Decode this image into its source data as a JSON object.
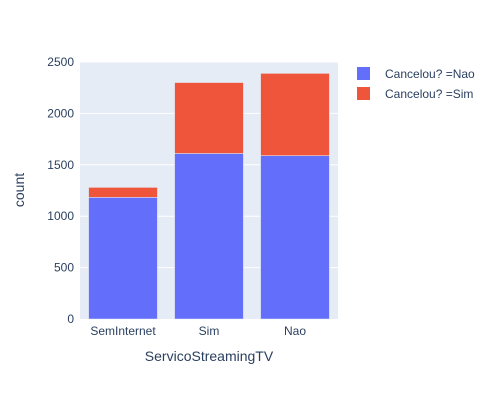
{
  "chart_data": {
    "type": "bar",
    "stacked": true,
    "categories": [
      "SemInternet",
      "Sim",
      "Nao"
    ],
    "series": [
      {
        "name": "Cancelou? =Nao",
        "values": [
          1183,
          1610,
          1589
        ],
        "color": "#636efa"
      },
      {
        "name": "Cancelou? =Sim",
        "values": [
          97,
          690,
          800
        ],
        "color": "#ef553b"
      }
    ],
    "title": "",
    "xlabel": "ServicoStreamingTV",
    "ylabel": "count",
    "ylim": [
      0,
      2500
    ],
    "yticks": [
      0,
      500,
      1000,
      1500,
      2000,
      2500
    ],
    "ytick_labels": [
      "0",
      "500",
      "1000",
      "1500",
      "2000",
      "2500"
    ],
    "grid": true,
    "legend_position": "top-right",
    "plot_background": "#e5ecf6"
  }
}
